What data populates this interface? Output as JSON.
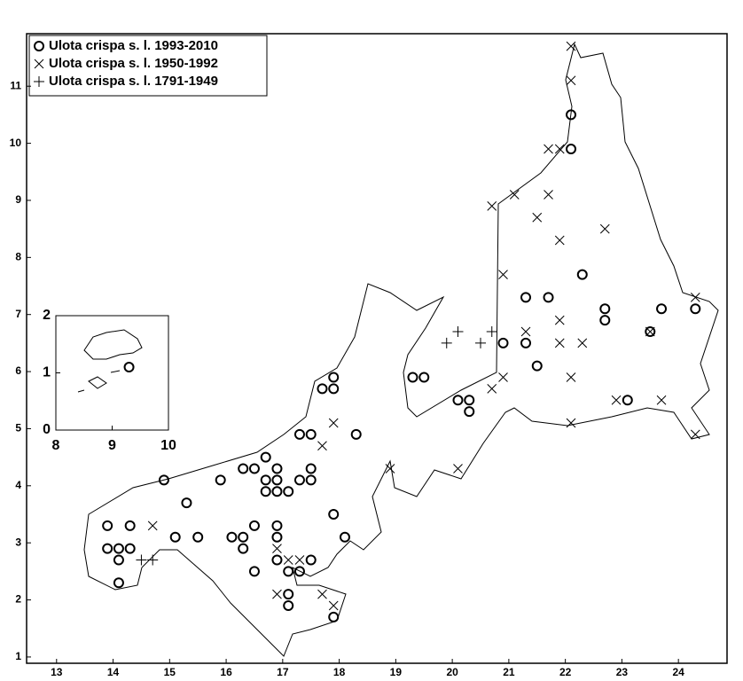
{
  "chart_data": [
    {
      "type": "scatter",
      "xlim": [
        12.47,
        24.86
      ],
      "ylim": [
        0.89,
        11.92
      ],
      "xticks": [
        13,
        14,
        15,
        16,
        17,
        18,
        19,
        20,
        21,
        22,
        23,
        24
      ],
      "yticks": [
        1,
        2,
        3,
        4,
        5,
        6,
        7,
        8,
        9,
        10,
        11
      ],
      "legend": "top-left",
      "series": [
        {
          "name": "Ulota crispa s. l. 1993-2010",
          "marker": "circle",
          "color": "#000000",
          "x": [
            22.1,
            22.1,
            22.3,
            21.3,
            21.7,
            22.7,
            22.7,
            23.7,
            24.3,
            23.5,
            20.9,
            21.3,
            21.5,
            19.3,
            19.5,
            20.1,
            20.3,
            20.3,
            23.1,
            17.9,
            17.7,
            17.9,
            17.3,
            17.5,
            18.3,
            16.7,
            16.3,
            16.5,
            16.9,
            17.5,
            14.9,
            15.9,
            16.7,
            16.9,
            17.3,
            17.5,
            16.7,
            16.9,
            17.1,
            15.3,
            13.9,
            14.3,
            16.5,
            16.9,
            17.9,
            15.1,
            15.5,
            16.1,
            16.3,
            16.9,
            18.1,
            13.9,
            14.1,
            14.3,
            16.3,
            14.1,
            16.9,
            17.5,
            16.5,
            17.1,
            17.3,
            14.1,
            17.1,
            17.1,
            17.9
          ],
          "values": [
            10.5,
            9.9,
            7.7,
            7.3,
            7.3,
            7.1,
            6.9,
            7.1,
            7.1,
            6.7,
            6.5,
            6.5,
            6.1,
            5.9,
            5.9,
            5.5,
            5.5,
            5.3,
            5.5,
            5.9,
            5.7,
            5.7,
            4.9,
            4.9,
            4.9,
            4.5,
            4.3,
            4.3,
            4.3,
            4.3,
            4.1,
            4.1,
            4.1,
            4.1,
            4.1,
            4.1,
            3.9,
            3.9,
            3.9,
            3.7,
            3.3,
            3.3,
            3.3,
            3.3,
            3.5,
            3.1,
            3.1,
            3.1,
            3.1,
            3.1,
            3.1,
            2.9,
            2.9,
            2.9,
            2.9,
            2.7,
            2.7,
            2.7,
            2.5,
            2.5,
            2.5,
            2.3,
            2.1,
            1.9,
            1.7
          ]
        },
        {
          "name": "Ulota crispa s. l. 1950-1992",
          "marker": "x",
          "color": "#000000",
          "x": [
            22.1,
            22.1,
            21.7,
            21.9,
            21.1,
            21.7,
            20.7,
            21.5,
            22.7,
            21.9,
            20.9,
            24.3,
            21.9,
            21.3,
            21.9,
            22.3,
            23.5,
            20.9,
            22.1,
            20.7,
            22.9,
            23.7,
            22.1,
            24.3,
            17.9,
            17.7,
            18.9,
            20.1,
            14.7,
            17.1,
            17.3,
            16.9,
            16.9,
            17.7,
            17.9
          ],
          "values": [
            11.7,
            11.1,
            9.9,
            9.9,
            9.1,
            9.1,
            8.9,
            8.7,
            8.5,
            8.3,
            7.7,
            7.3,
            6.9,
            6.7,
            6.5,
            6.5,
            6.7,
            5.9,
            5.9,
            5.7,
            5.5,
            5.5,
            5.1,
            4.9,
            5.1,
            4.7,
            4.3,
            4.3,
            3.3,
            2.7,
            2.7,
            2.9,
            2.1,
            2.1,
            1.9
          ]
        },
        {
          "name": "Ulota crispa s. l. 1791-1949",
          "marker": "plus",
          "color": "#000000",
          "x": [
            19.9,
            20.1,
            20.5,
            20.7,
            14.5,
            14.7
          ],
          "values": [
            6.5,
            6.7,
            6.5,
            6.7,
            2.7,
            2.7
          ]
        }
      ]
    },
    {
      "type": "scatter",
      "xlim": [
        8,
        10
      ],
      "ylim": [
        0,
        2
      ],
      "xticks": [
        8,
        9,
        10
      ],
      "yticks": [
        0,
        1,
        2
      ],
      "series": [
        {
          "marker": "circle",
          "color": "#000000",
          "x": [
            9.3
          ],
          "values": [
            1.1
          ]
        }
      ]
    }
  ]
}
